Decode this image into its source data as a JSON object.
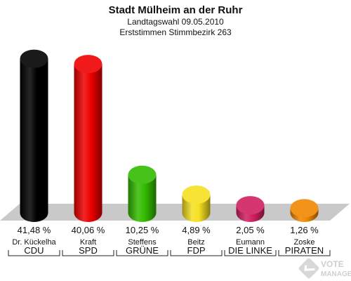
{
  "chart_data": {
    "type": "bar",
    "title": "Stadt Mülheim an der Ruhr",
    "subtitle": "Landtagswahl 09.05.2010",
    "subtitle2": "Erststimmen Stimmbezirk 263",
    "ylim": [
      0,
      45
    ],
    "categories": [
      "CDU",
      "SPD",
      "GRÜNE",
      "FDP",
      "DIE LINKE",
      "PIRATEN"
    ],
    "candidates": [
      "Dr. Kückelha",
      "Kraft",
      "Steffens",
      "Beitz",
      "Eumann",
      "Zoske"
    ],
    "values": [
      41.48,
      40.06,
      10.25,
      4.89,
      2.05,
      1.26
    ],
    "value_labels": [
      "41,48 %",
      "40,06 %",
      "10,25 %",
      "4,89 %",
      "2,05 %",
      "1,26 %"
    ],
    "colors": [
      "#000000",
      "#ee0000",
      "#33bb00",
      "#f5e020",
      "#d02060",
      "#f08800"
    ]
  },
  "logo": {
    "line1": "VOTE",
    "line2": "MANAGER"
  }
}
